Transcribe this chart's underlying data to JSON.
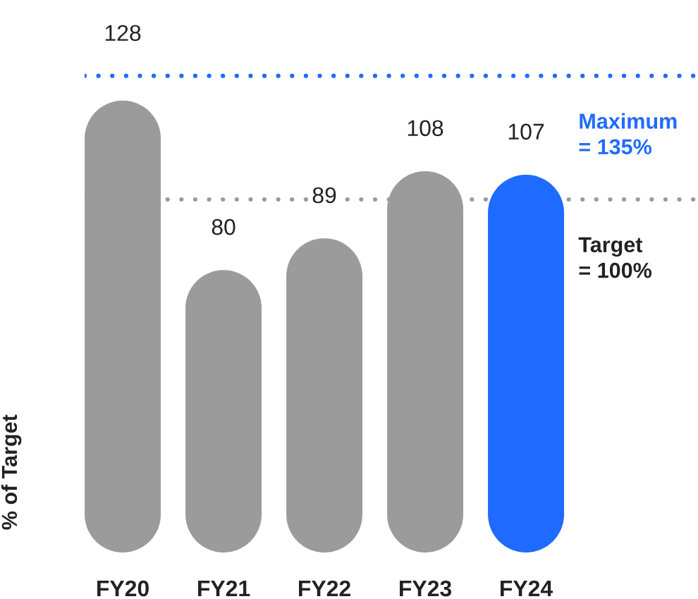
{
  "chart_data": {
    "type": "bar",
    "categories": [
      "FY20",
      "FY21",
      "FY22",
      "FY23",
      "FY24"
    ],
    "values": [
      128,
      80,
      89,
      108,
      107
    ],
    "colors": [
      "#9b9b9b",
      "#9b9b9b",
      "#9b9b9b",
      "#9b9b9b",
      "#1f6bff"
    ],
    "ylabel": "% of Target",
    "data_labels": true,
    "tick_labels": "x",
    "grid": false,
    "legend": false,
    "ref_lines": [
      {
        "axis": "y",
        "value": 135,
        "label": "Maximum\n= 135%",
        "color": "#1f6bff",
        "line_style": "dotted"
      },
      {
        "axis": "y",
        "value": 100,
        "label": "Target\n= 100%",
        "color": "#9b9b9b",
        "line_style": "dotted"
      }
    ]
  }
}
